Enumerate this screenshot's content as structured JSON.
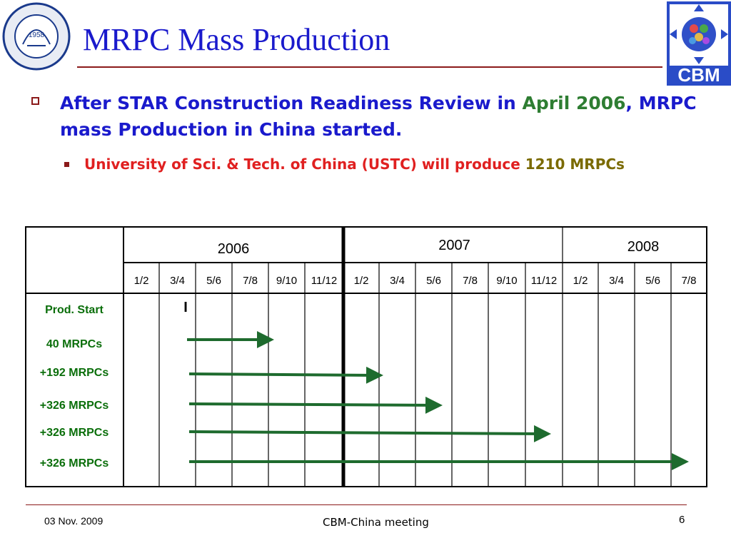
{
  "slide": {
    "title": "MRPC Mass Production",
    "bullet1_a": "After STAR Construction Readiness Review in ",
    "bullet1_b": "April 2006",
    "bullet1_c": ", MRPC mass Production in China started.",
    "bullet2_a": "University of Sci. & Tech. of China (USTC) will produce ",
    "bullet2_b": "1210 MRPCs"
  },
  "logos": {
    "ustc": {
      "year": "1958",
      "ring_text": "University of Science and Technology of China"
    },
    "cbm": {
      "text": "CBM"
    }
  },
  "table": {
    "years": [
      "2006",
      "2007",
      "2008"
    ],
    "months": [
      "1/2",
      "3/4",
      "5/6",
      "7/8",
      "9/10",
      "11/12",
      "1/2",
      "3/4",
      "5/6",
      "7/8",
      "9/10",
      "11/12",
      "1/2",
      "3/4",
      "5/6",
      "7/8"
    ],
    "rows": [
      {
        "label": "Prod. Start",
        "marker": "I"
      },
      {
        "label": "40 MRPCs"
      },
      {
        "label": "+192 MRPCs"
      },
      {
        "label": "+326 MRPCs"
      },
      {
        "label": "+326 MRPCs"
      },
      {
        "label": "+326 MRPCs"
      }
    ]
  },
  "footer": {
    "date": "03 Nov. 2009",
    "meeting": "CBM-China meeting",
    "page": "6"
  },
  "colors": {
    "title": "#1a1acc",
    "rule": "#8b1a1a",
    "arrow": "#1e6b2e",
    "label": "#0a6e0a",
    "highlight_green": "#2e7d32",
    "red": "#e02020"
  }
}
